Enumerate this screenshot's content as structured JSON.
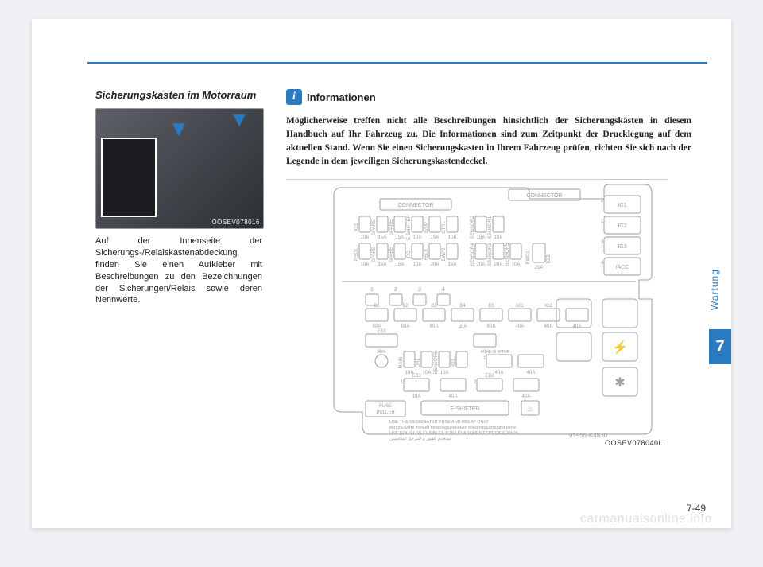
{
  "rule_color": "#2a7bbf",
  "left": {
    "section_title": "Sicherungskasten im Motorraum",
    "photo_caption": "OOSEV078016",
    "body": "Auf der Innenseite der Sicherungs-/Relaiskastenabdeckung finden Sie einen Aufkleber mit Beschreibungen zu den Bezeichnungen der Sicherungen/Relais sowie deren Nennwerte."
  },
  "right": {
    "info_icon": "i",
    "info_title": "Informationen",
    "info_body": "Möglicherweise treffen nicht alle Beschreibungen hinsichtlich der Sicherungskästen in diesem Handbuch auf Ihr Fahrzeug zu. Die Informationen sind zum Zeitpunkt der Drucklegung auf dem aktuellen Stand. Wenn Sie einen Sicherungskasten in Ihrem Fahrzeug prüfen, richten Sie sich nach der Legende in dem jeweiligen Sicherungskastendeckel.",
    "diagram_caption": "OOSEV078040L",
    "diagram": {
      "stroke": "#9aa0a6",
      "fill": "#ffffff",
      "text_color": "#9aa0a6",
      "font_size": 7,
      "top_block": {
        "connector_label": "CONNECTOR",
        "row1": [
          {
            "label": "IG3",
            "amp": "10A"
          },
          {
            "label": "SPARE",
            "amp": "15A"
          },
          {
            "label": "SPARE",
            "amp": "15A"
          },
          {
            "label": "E-SHIFTER",
            "amp": "10A"
          },
          {
            "label": "B/UP",
            "amp": "15A"
          },
          {
            "label": "CTRL",
            "amp": "10A"
          }
        ],
        "row2": [
          {
            "label": "P/SDL",
            "amp": "10A"
          },
          {
            "label": "SPARE",
            "amp": "15A"
          },
          {
            "label": "SPARE",
            "amp": "15A"
          },
          {
            "label": "DC",
            "amp": "10A"
          },
          {
            "label": "FBLK",
            "amp": "20A"
          },
          {
            "label": "EWP2",
            "amp": "15A"
          }
        ],
        "row_right_top": [
          {
            "label": "SENSOR2",
            "amp": "15A"
          },
          {
            "label": "SENSOR1",
            "amp": "10A"
          }
        ],
        "row_right_bottom": [
          {
            "label": "SENSOR4",
            "amp": "20A"
          },
          {
            "label": "SENSOR3",
            "amp": "20A"
          },
          {
            "label": "SENSOR5",
            "amp": "10A"
          }
        ],
        "far_right_top": [
          {
            "n": "2",
            "label": "IG1"
          },
          {
            "n": "1",
            "label": "IG2"
          },
          {
            "n": "3",
            "label": "IG3"
          },
          {
            "n": "4",
            "label": "/ACC"
          }
        ],
        "big_fuse": {
          "label": "EWP1",
          "amp": "20A"
        }
      },
      "bottom_block": {
        "numbered": [
          "1",
          "2",
          "3",
          "4"
        ],
        "row_big": [
          {
            "label": "B1",
            "amp": "60A"
          },
          {
            "label": "B2",
            "amp": "60A"
          },
          {
            "label": "B3",
            "amp": "60A"
          },
          {
            "label": "B4",
            "amp": "50A"
          },
          {
            "label": "B5",
            "amp": "60A"
          },
          {
            "label": "IG1",
            "amp": "40A"
          },
          {
            "label": "IG2",
            "amp": "40A"
          },
          {
            "label": "",
            "amp": "40A"
          }
        ],
        "row_mid_left": [
          {
            "label": "EB3",
            "amp": "80A"
          }
        ],
        "row_mid_right": [
          {
            "label": "",
            "amp": "40A"
          }
        ],
        "row_cluster": [
          {
            "label": "MAIN",
            "amp": "10A"
          },
          {
            "label": "DRL",
            "amp": "10A"
          },
          {
            "label": "SENSOR6",
            "amp": "10A"
          },
          {
            "label": "IG3",
            "amp": ""
          }
        ],
        "eshifter": [
          {
            "n": "1",
            "label": "E-SHIFTER",
            "amp": "40A"
          },
          {
            "n": "",
            "label": "",
            "amp": "40A"
          }
        ],
        "row_eb": [
          {
            "n": "1",
            "label": "EB1",
            "amp": "10A"
          },
          {
            "n": "",
            "label": "",
            "amp": "40A"
          },
          {
            "n": "2",
            "label": "EB2",
            "amp": ""
          },
          {
            "n": "",
            "label": "",
            "amp": "40A"
          }
        ],
        "fuse_puller": "FUSE\nPULLER",
        "eshifter2": "E-SHIFTER",
        "part_no": "91955-K4530",
        "notes": [
          "USE THE DESIGNATED FUSE AND RELAY ONLY",
          "используйте только предназначенные предохранители и реле",
          "USE SOLO LOS FUSIBLES Y RELEVADORES ESPECIFICADOS",
          "استخدم الفيوز و المرحل المناسبين"
        ]
      }
    }
  },
  "side": {
    "label": "Wartung",
    "chapter": "7"
  },
  "page_number": "7-49",
  "watermark": "carmanualsonline.info"
}
